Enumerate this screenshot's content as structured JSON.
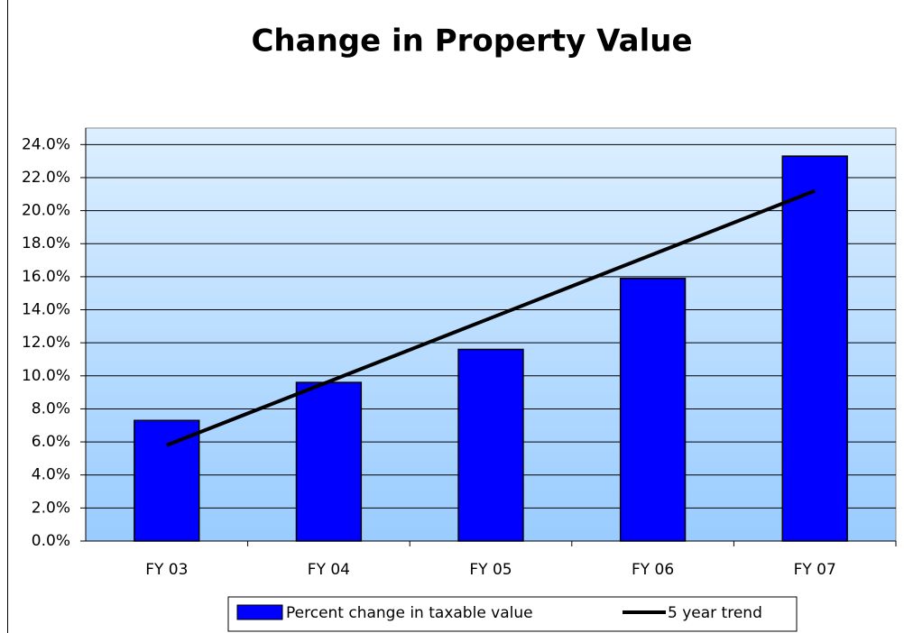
{
  "chart_data": {
    "type": "bar",
    "title": "Change in Property Value",
    "categories": [
      "FY 03",
      "FY 04",
      "FY 05",
      "FY 06",
      "FY 07"
    ],
    "series": [
      {
        "name": "Percent change in taxable value",
        "type": "bar",
        "color": "#0000ff",
        "values": [
          7.3,
          9.6,
          11.6,
          15.9,
          23.3
        ]
      },
      {
        "name": "5 year trend",
        "type": "line",
        "color": "#000000",
        "values": [
          5.8,
          9.65,
          13.5,
          17.35,
          21.2
        ]
      }
    ],
    "ylim": [
      0,
      25
    ],
    "yticks": [
      {
        "value": 0,
        "label": "0.0%"
      },
      {
        "value": 2,
        "label": "2.0%"
      },
      {
        "value": 4,
        "label": "4.0%"
      },
      {
        "value": 6,
        "label": "6.0%"
      },
      {
        "value": 8,
        "label": "8.0%"
      },
      {
        "value": 10,
        "label": "10.0%"
      },
      {
        "value": 12,
        "label": "12.0%"
      },
      {
        "value": 14,
        "label": "14.0%"
      },
      {
        "value": 16,
        "label": "16.0%"
      },
      {
        "value": 18,
        "label": "18.0%"
      },
      {
        "value": 20,
        "label": "20.0%"
      },
      {
        "value": 22,
        "label": "22.0%"
      },
      {
        "value": 24,
        "label": "24.0%"
      }
    ],
    "grid": true,
    "legend": "bottom"
  }
}
